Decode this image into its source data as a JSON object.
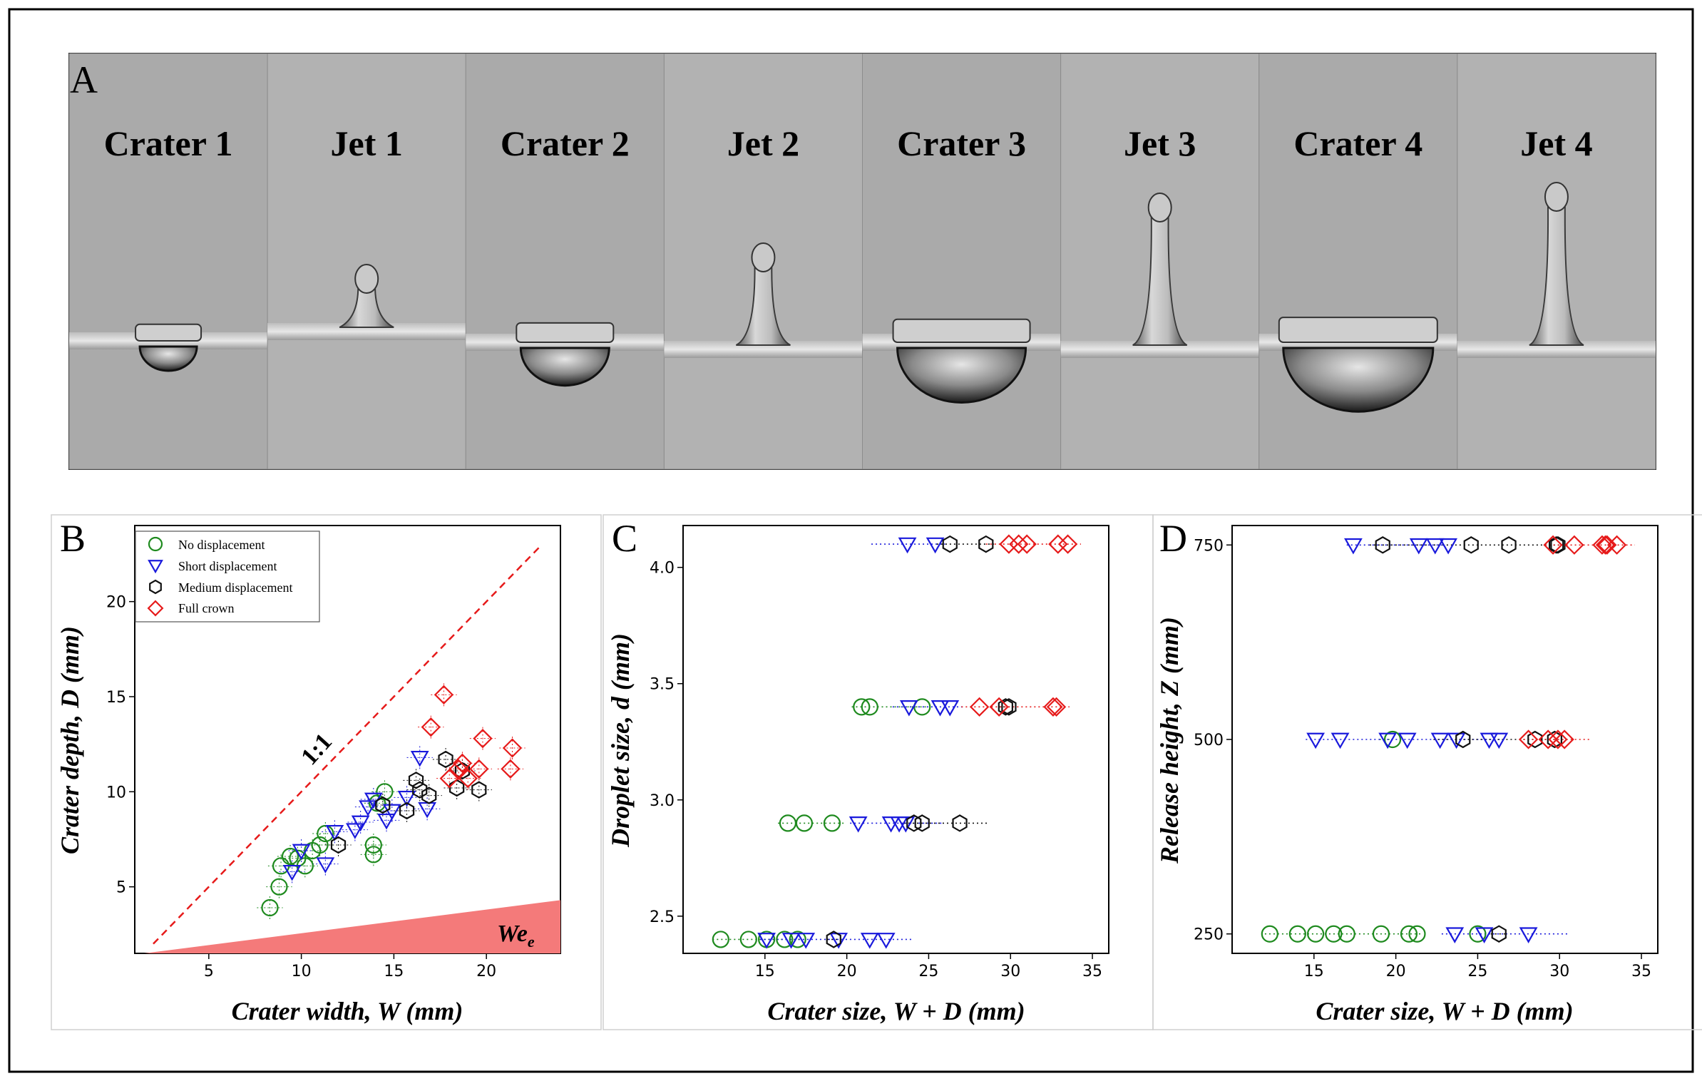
{
  "figure": {
    "panel_a": {
      "letter": "A",
      "frames": [
        "Crater 1",
        "Jet 1",
        "Crater 2",
        "Jet 2",
        "Crater 3",
        "Jet 3",
        "Crater 4",
        "Jet 4"
      ]
    }
  },
  "colors": {
    "no_displacement": "#1e8a1e",
    "short_displacement": "#1a1adc",
    "medium_displacement": "#111111",
    "full_crown": "#e61a1a",
    "wedge": "#f47a7a",
    "photo_bg": "#a9a9a9"
  },
  "chart_data": [
    {
      "panel": "B",
      "type": "scatter",
      "xlabel": "Crater width, W (mm)",
      "ylabel": "Crater depth, D (mm)",
      "xlim": [
        1,
        24
      ],
      "ylim": [
        1.5,
        24
      ],
      "xticks": [
        5,
        10,
        15,
        20
      ],
      "yticks": [
        5,
        10,
        15,
        20
      ],
      "reference_line": {
        "label": "1:1",
        "x": [
          2,
          23
        ],
        "y": [
          2,
          23
        ]
      },
      "wedge_label": "We",
      "wedge_subscript": "e",
      "legend": [
        "No displacement",
        "Short displacement",
        "Medium displacement",
        "Full crown"
      ],
      "series": [
        {
          "name": "No displacement",
          "marker": "circle",
          "points": [
            [
              8.3,
              3.9
            ],
            [
              8.8,
              5.0
            ],
            [
              8.9,
              6.1
            ],
            [
              9.4,
              6.6
            ],
            [
              9.8,
              6.5
            ],
            [
              10.2,
              6.1
            ],
            [
              10.6,
              6.9
            ],
            [
              11.0,
              7.2
            ],
            [
              11.3,
              7.8
            ],
            [
              13.9,
              6.7
            ],
            [
              13.9,
              7.2
            ],
            [
              14.1,
              9.4
            ],
            [
              14.5,
              10.0
            ]
          ]
        },
        {
          "name": "Short displacement",
          "marker": "triangle",
          "points": [
            [
              9.5,
              5.8
            ],
            [
              10.0,
              6.9
            ],
            [
              11.3,
              6.2
            ],
            [
              11.8,
              7.9
            ],
            [
              12.9,
              8.0
            ],
            [
              13.2,
              8.4
            ],
            [
              13.6,
              9.2
            ],
            [
              13.9,
              9.6
            ],
            [
              14.6,
              8.5
            ],
            [
              14.9,
              9.0
            ],
            [
              15.7,
              9.7
            ],
            [
              16.4,
              11.8
            ],
            [
              16.8,
              9.1
            ]
          ]
        },
        {
          "name": "Medium displacement",
          "marker": "hexagon",
          "points": [
            [
              12.0,
              7.2
            ],
            [
              14.4,
              9.3
            ],
            [
              15.7,
              9.0
            ],
            [
              16.2,
              10.6
            ],
            [
              16.4,
              10.1
            ],
            [
              16.9,
              9.8
            ],
            [
              17.8,
              11.7
            ],
            [
              18.4,
              10.2
            ],
            [
              18.7,
              11.1
            ],
            [
              19.6,
              10.1
            ]
          ]
        },
        {
          "name": "Full crown",
          "marker": "diamond",
          "points": [
            [
              17.0,
              13.4
            ],
            [
              17.7,
              15.1
            ],
            [
              18.0,
              10.7
            ],
            [
              18.5,
              11.2
            ],
            [
              18.7,
              11.5
            ],
            [
              19.0,
              10.7
            ],
            [
              19.6,
              11.2
            ],
            [
              19.8,
              12.8
            ],
            [
              21.3,
              11.2
            ],
            [
              21.4,
              12.3
            ]
          ]
        }
      ]
    },
    {
      "panel": "C",
      "type": "scatter",
      "xlabel": "Crater size, W + D (mm)",
      "ylabel": "Droplet size, d (mm)",
      "xlim": [
        10,
        36
      ],
      "ylim": [
        2.34,
        4.18
      ],
      "xticks": [
        15,
        20,
        25,
        30,
        35
      ],
      "yticks": [
        2.5,
        3.0,
        3.5,
        4.0
      ],
      "ytick_labels": [
        "2.5",
        "3.0",
        "3.5",
        "4.0"
      ],
      "ranges": [
        {
          "y": 2.4,
          "segments": [
            [
              "No displacement",
              11.8,
              17.2
            ],
            [
              "Short displacement",
              14.7,
              24.0
            ],
            [
              "Medium displacement",
              18.8,
              19.6
            ]
          ]
        },
        {
          "y": 2.9,
          "segments": [
            [
              "No displacement",
              15.8,
              19.8
            ],
            [
              "Short displacement",
              20.2,
              25.8
            ],
            [
              "Medium displacement",
              23.5,
              28.7
            ]
          ]
        },
        {
          "y": 3.4,
          "segments": [
            [
              "No displacement",
              20.3,
              25.0
            ],
            [
              "Short displacement",
              22.8,
              27.1
            ],
            [
              "Medium displacement",
              29.3,
              30.2
            ],
            [
              "Full crown",
              27.0,
              33.6
            ]
          ]
        },
        {
          "y": 4.1,
          "segments": [
            [
              "Short displacement",
              21.5,
              26.0
            ],
            [
              "Medium displacement",
              25.5,
              29.0
            ],
            [
              "Full crown",
              28.5,
              34.3
            ]
          ]
        }
      ],
      "series": [
        {
          "name": "No displacement",
          "marker": "circle",
          "points": [
            [
              12.3,
              2.4
            ],
            [
              14.0,
              2.4
            ],
            [
              15.1,
              2.4
            ],
            [
              16.2,
              2.4
            ],
            [
              17.0,
              2.4
            ],
            [
              16.4,
              2.9
            ],
            [
              17.4,
              2.9
            ],
            [
              19.1,
              2.9
            ],
            [
              20.9,
              3.4
            ],
            [
              21.4,
              3.4
            ],
            [
              24.6,
              3.4
            ]
          ]
        },
        {
          "name": "Short displacement",
          "marker": "triangle",
          "points": [
            [
              15.1,
              2.4
            ],
            [
              16.6,
              2.4
            ],
            [
              17.5,
              2.4
            ],
            [
              19.5,
              2.4
            ],
            [
              21.4,
              2.4
            ],
            [
              22.4,
              2.4
            ],
            [
              20.7,
              2.9
            ],
            [
              22.7,
              2.9
            ],
            [
              23.2,
              2.9
            ],
            [
              23.6,
              2.9
            ],
            [
              23.8,
              3.4
            ],
            [
              25.7,
              3.4
            ],
            [
              26.3,
              3.4
            ],
            [
              23.7,
              4.1
            ],
            [
              25.4,
              4.1
            ]
          ]
        },
        {
          "name": "Medium displacement",
          "marker": "hexagon",
          "points": [
            [
              19.2,
              2.4
            ],
            [
              24.1,
              2.9
            ],
            [
              24.6,
              2.9
            ],
            [
              26.9,
              2.9
            ],
            [
              29.7,
              3.4
            ],
            [
              29.9,
              3.4
            ],
            [
              26.3,
              4.1
            ],
            [
              28.5,
              4.1
            ]
          ]
        },
        {
          "name": "Full crown",
          "marker": "diamond",
          "points": [
            [
              28.1,
              3.4
            ],
            [
              29.3,
              3.4
            ],
            [
              32.6,
              3.4
            ],
            [
              32.8,
              3.4
            ],
            [
              29.9,
              4.1
            ],
            [
              30.5,
              4.1
            ],
            [
              31.0,
              4.1
            ],
            [
              32.9,
              4.1
            ],
            [
              33.5,
              4.1
            ]
          ]
        }
      ]
    },
    {
      "panel": "D",
      "type": "scatter",
      "xlabel": "Crater size, W + D (mm)",
      "ylabel": "Release height, Z (mm)",
      "xlim": [
        10,
        36
      ],
      "ylim": [
        225,
        775
      ],
      "xticks": [
        15,
        20,
        25,
        30,
        35
      ],
      "yticks": [
        250,
        500,
        750
      ],
      "ranges": [
        {
          "y": 250,
          "segments": [
            [
              "No displacement",
              12.0,
              21.6
            ],
            [
              "Short displacement",
              22.8,
              30.6
            ],
            [
              "Medium displacement",
              25.8,
              26.7
            ]
          ]
        },
        {
          "y": 500,
          "segments": [
            [
              "No displacement",
              19.0,
              19.7
            ],
            [
              "Short displacement",
              14.5,
              26.5
            ],
            [
              "Medium displacement",
              22.3,
              29.9
            ],
            [
              "Full crown",
              27.8,
              31.9
            ]
          ]
        },
        {
          "y": 750,
          "segments": [
            [
              "Short displacement",
              17.0,
              23.0
            ],
            [
              "Medium displacement",
              18.4,
              30.0
            ],
            [
              "Full crown",
              29.1,
              34.6
            ]
          ]
        }
      ],
      "series": [
        {
          "name": "No displacement",
          "marker": "circle",
          "points": [
            [
              12.3,
              250
            ],
            [
              14.0,
              250
            ],
            [
              15.1,
              250
            ],
            [
              16.2,
              250
            ],
            [
              17.0,
              250
            ],
            [
              19.1,
              250
            ],
            [
              20.8,
              250
            ],
            [
              21.3,
              250
            ],
            [
              25.0,
              250
            ],
            [
              19.8,
              500
            ]
          ]
        },
        {
          "name": "Short displacement",
          "marker": "triangle",
          "points": [
            [
              23.6,
              250
            ],
            [
              25.4,
              250
            ],
            [
              28.1,
              250
            ],
            [
              15.1,
              500
            ],
            [
              16.6,
              500
            ],
            [
              19.5,
              500
            ],
            [
              20.7,
              500
            ],
            [
              22.7,
              500
            ],
            [
              23.7,
              500
            ],
            [
              25.7,
              500
            ],
            [
              26.3,
              500
            ],
            [
              17.4,
              750
            ],
            [
              21.4,
              750
            ],
            [
              22.4,
              750
            ],
            [
              23.2,
              750
            ]
          ]
        },
        {
          "name": "Medium displacement",
          "marker": "hexagon",
          "points": [
            [
              26.3,
              250
            ],
            [
              24.1,
              500
            ],
            [
              28.5,
              500
            ],
            [
              29.7,
              500
            ],
            [
              19.2,
              750
            ],
            [
              24.6,
              750
            ],
            [
              26.9,
              750
            ],
            [
              29.8,
              750
            ],
            [
              29.9,
              750
            ]
          ]
        },
        {
          "name": "Full crown",
          "marker": "diamond",
          "points": [
            [
              28.1,
              500
            ],
            [
              29.3,
              500
            ],
            [
              29.9,
              500
            ],
            [
              30.3,
              500
            ],
            [
              29.6,
              750
            ],
            [
              30.9,
              750
            ],
            [
              32.6,
              750
            ],
            [
              32.9,
              750
            ],
            [
              33.5,
              750
            ],
            [
              32.8,
              750
            ]
          ]
        }
      ]
    }
  ]
}
